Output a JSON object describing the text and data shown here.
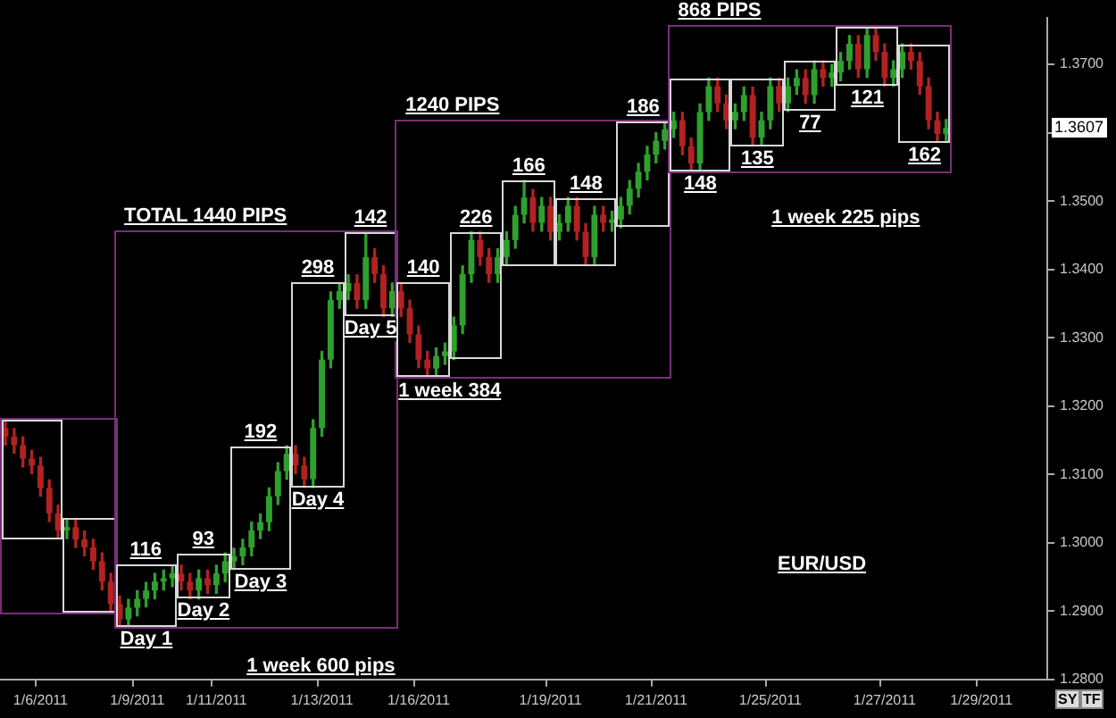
{
  "chart_data": {
    "type": "candlestick",
    "categories": [
      null,
      null,
      null,
      null,
      "1/6/2011",
      null,
      null,
      null,
      null,
      null,
      null,
      null,
      null,
      null,
      null,
      "1/9/2011",
      null,
      null,
      null,
      null,
      null,
      null,
      null,
      null,
      "1/11/2011",
      null,
      null,
      null,
      null,
      null,
      null,
      null,
      null,
      null,
      null,
      null,
      "1/13/2011",
      null,
      null,
      null,
      null,
      null,
      null,
      null,
      null,
      null,
      null,
      "1/16/2011",
      null,
      null,
      null,
      null,
      null,
      null,
      null,
      null,
      null,
      null,
      null,
      null,
      null,
      null,
      "1/19/2011",
      null,
      null,
      null,
      null,
      null,
      null,
      null,
      null,
      null,
      null,
      null,
      "1/21/2011",
      null,
      null,
      null,
      null,
      null,
      null,
      null,
      null,
      null,
      null,
      null,
      null,
      "1/25/2011",
      null,
      null,
      null,
      null,
      null,
      null,
      null,
      null,
      null,
      null,
      null,
      null,
      "1/27/2011",
      null,
      null,
      null,
      null,
      null,
      null,
      null,
      null,
      null,
      null,
      "1/29/2011",
      null,
      null,
      null,
      null,
      null,
      null,
      null
    ],
    "ohlc": [
      [
        1.3168,
        1.318,
        1.3143,
        1.3155
      ],
      [
        1.3155,
        1.3167,
        1.3131,
        1.3143
      ],
      [
        1.3143,
        1.3155,
        1.3111,
        1.3123
      ],
      [
        1.3123,
        1.3135,
        1.3101,
        1.3113
      ],
      [
        1.3113,
        1.3125,
        1.3068,
        1.308
      ],
      [
        1.308,
        1.3092,
        1.3031,
        1.3043
      ],
      [
        1.3043,
        1.3055,
        1.3006,
        1.3018
      ],
      [
        1.3018,
        1.3035,
        1.3006,
        1.3023
      ],
      [
        1.3023,
        1.3035,
        1.2993,
        1.3005
      ],
      [
        1.3005,
        1.3017,
        1.2981,
        1.2993
      ],
      [
        1.2993,
        1.3005,
        1.2961,
        1.2973
      ],
      [
        1.2973,
        1.2985,
        1.2931,
        1.2943
      ],
      [
        1.2943,
        1.2955,
        1.2898,
        1.291
      ],
      [
        1.291,
        1.2922,
        1.2876,
        1.2888
      ],
      [
        1.2888,
        1.2917,
        1.2876,
        1.2905
      ],
      [
        1.2905,
        1.293,
        1.2893,
        1.2918
      ],
      [
        1.2918,
        1.2942,
        1.2906,
        1.293
      ],
      [
        1.293,
        1.2955,
        1.2918,
        1.2943
      ],
      [
        1.2943,
        1.296,
        1.2931,
        1.2948
      ],
      [
        1.2948,
        1.2967,
        1.2936,
        1.2955
      ],
      [
        1.2955,
        1.2967,
        1.2931,
        1.2943
      ],
      [
        1.2943,
        1.2955,
        1.2918,
        1.293
      ],
      [
        1.293,
        1.296,
        1.2918,
        1.2948
      ],
      [
        1.2948,
        1.296,
        1.2926,
        1.2938
      ],
      [
        1.2938,
        1.2967,
        1.2926,
        1.2955
      ],
      [
        1.2955,
        1.2985,
        1.2943,
        1.2973
      ],
      [
        1.2973,
        1.2992,
        1.2961,
        1.298
      ],
      [
        1.298,
        1.3005,
        1.2968,
        1.2993
      ],
      [
        1.2993,
        1.303,
        1.2981,
        1.3018
      ],
      [
        1.3018,
        1.3042,
        1.3006,
        1.303
      ],
      [
        1.303,
        1.308,
        1.3018,
        1.3068
      ],
      [
        1.3068,
        1.3117,
        1.3056,
        1.3105
      ],
      [
        1.3105,
        1.3142,
        1.3093,
        1.313
      ],
      [
        1.313,
        1.3142,
        1.3101,
        1.3113
      ],
      [
        1.3113,
        1.3125,
        1.3081,
        1.3093
      ],
      [
        1.3093,
        1.318,
        1.3081,
        1.3168
      ],
      [
        1.3168,
        1.328,
        1.3156,
        1.3268
      ],
      [
        1.3268,
        1.3367,
        1.3256,
        1.3355
      ],
      [
        1.3355,
        1.338,
        1.3343,
        1.3368
      ],
      [
        1.3368,
        1.3392,
        1.3356,
        1.338
      ],
      [
        1.338,
        1.3392,
        1.3343,
        1.3355
      ],
      [
        1.3355,
        1.3455,
        1.3343,
        1.3418
      ],
      [
        1.3418,
        1.343,
        1.3381,
        1.3393
      ],
      [
        1.3393,
        1.3405,
        1.3331,
        1.3343
      ],
      [
        1.3343,
        1.338,
        1.3331,
        1.3368
      ],
      [
        1.3368,
        1.338,
        1.3331,
        1.3343
      ],
      [
        1.3343,
        1.3355,
        1.3293,
        1.3305
      ],
      [
        1.3305,
        1.3317,
        1.3256,
        1.3268
      ],
      [
        1.3268,
        1.328,
        1.3243,
        1.3255
      ],
      [
        1.3255,
        1.3285,
        1.3243,
        1.3273
      ],
      [
        1.3273,
        1.3292,
        1.3261,
        1.328
      ],
      [
        1.328,
        1.333,
        1.3268,
        1.3318
      ],
      [
        1.3318,
        1.3405,
        1.3306,
        1.3393
      ],
      [
        1.3393,
        1.3455,
        1.3381,
        1.3443
      ],
      [
        1.3443,
        1.3455,
        1.3406,
        1.3418
      ],
      [
        1.3418,
        1.343,
        1.3381,
        1.3393
      ],
      [
        1.3393,
        1.343,
        1.3381,
        1.3418
      ],
      [
        1.3418,
        1.3455,
        1.3406,
        1.3443
      ],
      [
        1.3443,
        1.3492,
        1.3431,
        1.348
      ],
      [
        1.348,
        1.353,
        1.3468,
        1.3505
      ],
      [
        1.3505,
        1.3517,
        1.3456,
        1.3468
      ],
      [
        1.3468,
        1.3505,
        1.3456,
        1.3493
      ],
      [
        1.3493,
        1.3505,
        1.3443,
        1.3455
      ],
      [
        1.3455,
        1.348,
        1.3443,
        1.3468
      ],
      [
        1.3468,
        1.3505,
        1.3456,
        1.3493
      ],
      [
        1.3493,
        1.3505,
        1.3443,
        1.3455
      ],
      [
        1.3455,
        1.3467,
        1.3406,
        1.3418
      ],
      [
        1.3418,
        1.3492,
        1.3406,
        1.348
      ],
      [
        1.348,
        1.3492,
        1.3456,
        1.3468
      ],
      [
        1.3468,
        1.3485,
        1.3456,
        1.3473
      ],
      [
        1.3473,
        1.3505,
        1.3461,
        1.3493
      ],
      [
        1.3493,
        1.353,
        1.3481,
        1.3518
      ],
      [
        1.3518,
        1.3555,
        1.3506,
        1.3543
      ],
      [
        1.3543,
        1.358,
        1.3531,
        1.3568
      ],
      [
        1.3568,
        1.36,
        1.3556,
        1.3588
      ],
      [
        1.3588,
        1.3617,
        1.3576,
        1.3605
      ],
      [
        1.3605,
        1.363,
        1.3593,
        1.3618
      ],
      [
        1.3618,
        1.363,
        1.3568,
        1.358
      ],
      [
        1.358,
        1.3592,
        1.3543,
        1.3555
      ],
      [
        1.3555,
        1.3642,
        1.3543,
        1.363
      ],
      [
        1.363,
        1.368,
        1.3618,
        1.3668
      ],
      [
        1.3668,
        1.368,
        1.3631,
        1.3643
      ],
      [
        1.3643,
        1.3655,
        1.3606,
        1.3618
      ],
      [
        1.3618,
        1.3642,
        1.3606,
        1.363
      ],
      [
        1.363,
        1.3667,
        1.3618,
        1.3655
      ],
      [
        1.3655,
        1.3667,
        1.3581,
        1.3593
      ],
      [
        1.3593,
        1.363,
        1.3581,
        1.3618
      ],
      [
        1.3618,
        1.368,
        1.3606,
        1.3668
      ],
      [
        1.3668,
        1.368,
        1.3631,
        1.3643
      ],
      [
        1.3643,
        1.368,
        1.3631,
        1.3668
      ],
      [
        1.3668,
        1.3692,
        1.3656,
        1.368
      ],
      [
        1.368,
        1.3692,
        1.3643,
        1.3655
      ],
      [
        1.3655,
        1.3705,
        1.3643,
        1.3693
      ],
      [
        1.3693,
        1.3705,
        1.3668,
        1.368
      ],
      [
        1.368,
        1.37,
        1.3668,
        1.3688
      ],
      [
        1.3688,
        1.3717,
        1.3676,
        1.3705
      ],
      [
        1.3705,
        1.3742,
        1.3693,
        1.373
      ],
      [
        1.373,
        1.3742,
        1.3681,
        1.3693
      ],
      [
        1.3693,
        1.3755,
        1.3681,
        1.3743
      ],
      [
        1.3743,
        1.3755,
        1.3706,
        1.3718
      ],
      [
        1.3718,
        1.373,
        1.3668,
        1.368
      ],
      [
        1.368,
        1.3705,
        1.3668,
        1.3693
      ],
      [
        1.3693,
        1.373,
        1.3681,
        1.3718
      ],
      [
        1.3718,
        1.373,
        1.3693,
        1.3705
      ],
      [
        1.3705,
        1.3717,
        1.3656,
        1.3668
      ],
      [
        1.3668,
        1.368,
        1.3606,
        1.3618
      ],
      [
        1.3618,
        1.363,
        1.3586,
        1.3598
      ],
      [
        1.3598,
        1.3619,
        1.3586,
        1.3607
      ],
      null,
      null,
      null,
      null,
      null,
      null,
      null,
      null,
      null,
      null,
      null
    ],
    "ylim": [
      1.28,
      1.3768
    ],
    "yticks": [
      {
        "value": 1.28,
        "label": "1.2800"
      },
      {
        "value": 1.29,
        "label": "1.2900"
      },
      {
        "value": 1.3,
        "label": "1.3000"
      },
      {
        "value": 1.31,
        "label": "1.3100"
      },
      {
        "value": 1.32,
        "label": "1.3200"
      },
      {
        "value": 1.33,
        "label": "1.3300"
      },
      {
        "value": 1.34,
        "label": "1.3400"
      },
      {
        "value": 1.35,
        "label": "1.3500"
      },
      {
        "value": 1.36,
        "label": null
      },
      {
        "value": 1.37,
        "label": "1.3700"
      }
    ],
    "annotations": [
      "TOTAL 1440 PIPS",
      "1 week 600 pips",
      "116",
      "Day 1",
      "93",
      "Day 2",
      "192",
      "Day 3",
      "298",
      "Day 4",
      "142",
      "Day 5",
      "1240 PIPS",
      "1 week 384",
      "140",
      "226",
      "166",
      "148",
      "186",
      "868 PIPS",
      "1 week 225 pips",
      "148",
      "135",
      "77",
      "121",
      "162",
      "EUR/USD",
      {
        "text": "1.3607",
        "y": 1.3607
      },
      "SY",
      "TF"
    ]
  }
}
